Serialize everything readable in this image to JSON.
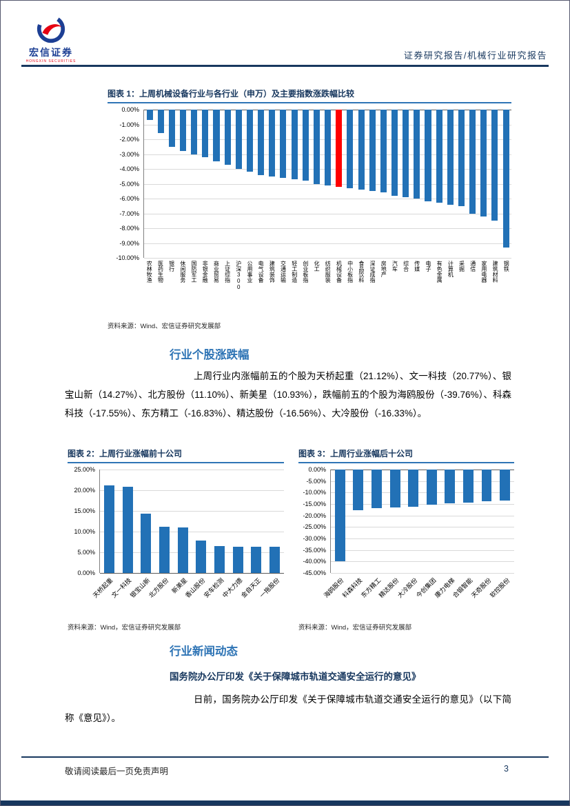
{
  "header": {
    "logo_text": "宏信证券",
    "logo_subtext": "HONGXIN SECURITIES",
    "report_type": "证券研究报告/机械行业研究报告"
  },
  "stock_section": {
    "heading": "行业个股涨跌幅",
    "paragraph": "上周行业内涨幅前五的个股为天桥起重（21.12%）、文一科技（20.77%）、银宝山新（14.27%）、北方股份（11.10%）、新美星（10.93%），跌幅前五的个股为海鸥股份（-39.76%）、科森科技（-17.55%）、东方精工（-16.83%）、精达股份（-16.56%）、大冷股份（-16.33%）。"
  },
  "news_section": {
    "heading": "行业新闻动态",
    "subheading": "国务院办公厅印发《关于保障城市轨道交通安全运行的意见》",
    "paragraph": "日前，国务院办公厅印发《关于保障城市轨道交通安全运行的意见》（以下简称《意见》）。"
  },
  "footer": {
    "disclaimer": "敬请阅读最后一页免责声明",
    "page_number": "3"
  },
  "colors": {
    "accent_navy": "#17375E",
    "heading_blue": "#2E74B5",
    "bar_blue": "#2271B6",
    "highlight_red": "#FF0000"
  },
  "chart_data": [
    {
      "type": "bar",
      "title": "图表 1：上周机械设备行业与各行业（申万）及主要指数涨跌幅比较",
      "source": "资料来源：Wind、宏信证券研究发展部",
      "categories": [
        "农林牧渔",
        "医药生物",
        "银行",
        "休闲服务",
        "国防军工",
        "非银金融",
        "商业贸易",
        "上证综指",
        "沪深300",
        "公用事业",
        "电气设备",
        "建筑装饰",
        "交通运输",
        "轻工制造",
        "创业板指",
        "化工",
        "纺织服装",
        "机械设备",
        "中小板指",
        "食品饮料",
        "深证成指",
        "房地产",
        "汽车",
        "综合",
        "传媒",
        "电子",
        "有色金属",
        "计算机",
        "采掘",
        "通信",
        "家用电器",
        "建筑材料",
        "钢铁"
      ],
      "values": [
        -0.7,
        -1.6,
        -2.5,
        -2.8,
        -3.0,
        -3.2,
        -3.5,
        -3.7,
        -4.0,
        -4.2,
        -4.4,
        -4.5,
        -4.6,
        -4.7,
        -4.8,
        -5.0,
        -5.1,
        -5.2,
        -5.3,
        -5.4,
        -5.5,
        -5.6,
        -5.8,
        -5.9,
        -6.0,
        -6.2,
        -6.3,
        -6.4,
        -6.5,
        -7.0,
        -7.2,
        -7.5,
        -9.3
      ],
      "ylim": [
        -10,
        0
      ],
      "ytick_step": 1,
      "highlight_index": 17,
      "highlight_category": "机械设备",
      "bar_color": "#2271B6",
      "highlight_color": "#FF0000",
      "grid": true,
      "legend": "none"
    },
    {
      "type": "bar",
      "title": "图表 2：上周行业涨幅前十公司",
      "source": "资料来源：Wind，宏信证券研究发展部",
      "categories": [
        "天桥起重",
        "文一科技",
        "银宝山新",
        "北方股份",
        "新美星",
        "香山股份",
        "安车检测",
        "中大力德",
        "金自天正",
        "一拖股份"
      ],
      "values": [
        21.12,
        20.77,
        14.27,
        11.1,
        10.93,
        7.9,
        6.5,
        6.4,
        6.35,
        6.3
      ],
      "ylim": [
        0,
        25
      ],
      "ytick_step": 5,
      "highlight_index": -1,
      "bar_color": "#2271B6",
      "highlight_color": "#FF0000",
      "grid": true,
      "legend": "none"
    },
    {
      "type": "bar",
      "title": "图表 3：上周行业涨幅后十公司",
      "source": "资料来源：Wind，宏信证券研究发展部",
      "categories": [
        "海鸥股份",
        "科森科技",
        "东方精工",
        "精达股份",
        "大冷股份",
        "今创集团",
        "康力电梯",
        "合锻智能",
        "天奇股份",
        "软控股份"
      ],
      "values": [
        -39.76,
        -17.55,
        -16.83,
        -16.56,
        -16.33,
        -15.2,
        -14.8,
        -14.3,
        -13.9,
        -13.5
      ],
      "ylim": [
        -45,
        0
      ],
      "ytick_step": 5,
      "highlight_index": -1,
      "bar_color": "#2271B6",
      "highlight_color": "#FF0000",
      "grid": true,
      "legend": "none"
    }
  ]
}
